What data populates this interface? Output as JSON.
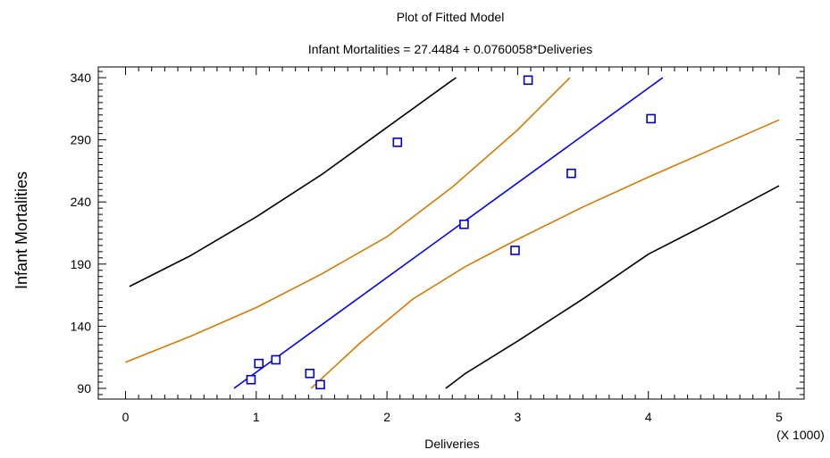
{
  "chart_data": {
    "type": "scatter",
    "title": "Plot of Fitted Model",
    "subtitle": "Infant Mortalities = 27.4484 + 0.0760058*Deliveries",
    "xlabel": "Deliveries",
    "ylabel": "Infant Mortalities",
    "x_multiplier_label": "(X 1000)",
    "xlim": [
      0,
      5
    ],
    "ylim": [
      85,
      345
    ],
    "x_ticks": [
      "0",
      "1",
      "2",
      "3",
      "4",
      "5"
    ],
    "y_ticks": [
      "90",
      "140",
      "190",
      "240",
      "290",
      "340"
    ],
    "grid": false,
    "legend": "none",
    "colors": {
      "points": "#0000cc",
      "fitted_line": "#0000ff",
      "confidence_limits": "#d97a00",
      "prediction_limits": "#000000"
    },
    "points": [
      {
        "x": 0.96,
        "y": 97
      },
      {
        "x": 1.02,
        "y": 110
      },
      {
        "x": 1.15,
        "y": 113
      },
      {
        "x": 1.41,
        "y": 102
      },
      {
        "x": 1.49,
        "y": 93
      },
      {
        "x": 2.08,
        "y": 288
      },
      {
        "x": 2.59,
        "y": 222
      },
      {
        "x": 2.98,
        "y": 201
      },
      {
        "x": 3.08,
        "y": 338
      },
      {
        "x": 3.41,
        "y": 263
      },
      {
        "x": 4.02,
        "y": 307
      }
    ],
    "fitted_line": [
      {
        "x": 0.83,
        "y": 90
      },
      {
        "x": 4.11,
        "y": 340
      }
    ],
    "upper_confidence": [
      {
        "x": 0.0,
        "y": 111
      },
      {
        "x": 0.5,
        "y": 132
      },
      {
        "x": 1.0,
        "y": 155
      },
      {
        "x": 1.5,
        "y": 182
      },
      {
        "x": 2.0,
        "y": 212
      },
      {
        "x": 2.5,
        "y": 252
      },
      {
        "x": 3.0,
        "y": 298
      },
      {
        "x": 3.4,
        "y": 340
      }
    ],
    "lower_confidence": [
      {
        "x": 1.42,
        "y": 90
      },
      {
        "x": 1.8,
        "y": 127
      },
      {
        "x": 2.2,
        "y": 162
      },
      {
        "x": 2.6,
        "y": 188
      },
      {
        "x": 3.0,
        "y": 210
      },
      {
        "x": 3.5,
        "y": 236
      },
      {
        "x": 4.0,
        "y": 260
      },
      {
        "x": 4.5,
        "y": 283
      },
      {
        "x": 5.0,
        "y": 306
      }
    ],
    "upper_prediction": [
      {
        "x": 0.03,
        "y": 172
      },
      {
        "x": 0.5,
        "y": 197
      },
      {
        "x": 1.0,
        "y": 228
      },
      {
        "x": 1.5,
        "y": 262
      },
      {
        "x": 2.0,
        "y": 300
      },
      {
        "x": 2.5,
        "y": 338
      },
      {
        "x": 2.53,
        "y": 340
      }
    ],
    "lower_prediction": [
      {
        "x": 2.45,
        "y": 90
      },
      {
        "x": 2.6,
        "y": 102
      },
      {
        "x": 3.0,
        "y": 128
      },
      {
        "x": 3.5,
        "y": 162
      },
      {
        "x": 4.0,
        "y": 198
      },
      {
        "x": 4.5,
        "y": 225
      },
      {
        "x": 5.0,
        "y": 253
      }
    ]
  }
}
